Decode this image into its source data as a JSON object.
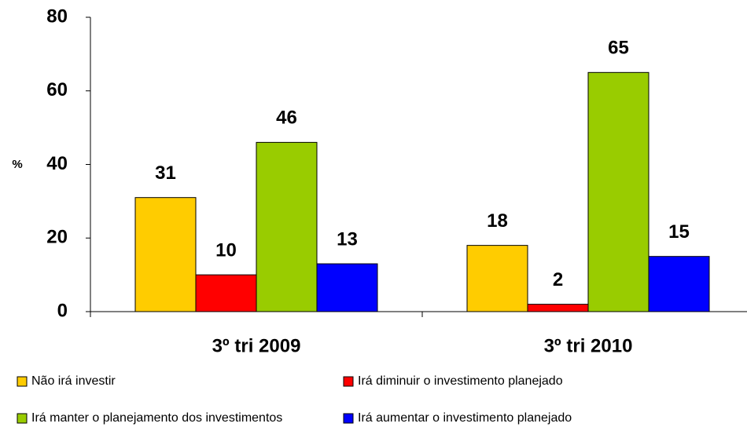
{
  "chart_data": {
    "type": "bar",
    "y_label": "%",
    "categories": [
      "3º tri 2009",
      "3º tri 2010"
    ],
    "series": [
      {
        "name": "Não irá investir",
        "color": "#ffcc00",
        "values": [
          31,
          18
        ]
      },
      {
        "name": "Irá diminuir o investimento planejado",
        "color": "#ff0000",
        "values": [
          10,
          2
        ]
      },
      {
        "name": "Irá manter o planejamento dos investimentos",
        "color": "#99cc00",
        "values": [
          46,
          65
        ]
      },
      {
        "name": "Irá aumentar o investimento planejado",
        "color": "#0000ff",
        "values": [
          13,
          15
        ]
      }
    ],
    "ylim": [
      0,
      80
    ],
    "yticks": [
      0,
      20,
      40,
      60,
      80
    ],
    "grid": false,
    "legend": "bottom"
  }
}
